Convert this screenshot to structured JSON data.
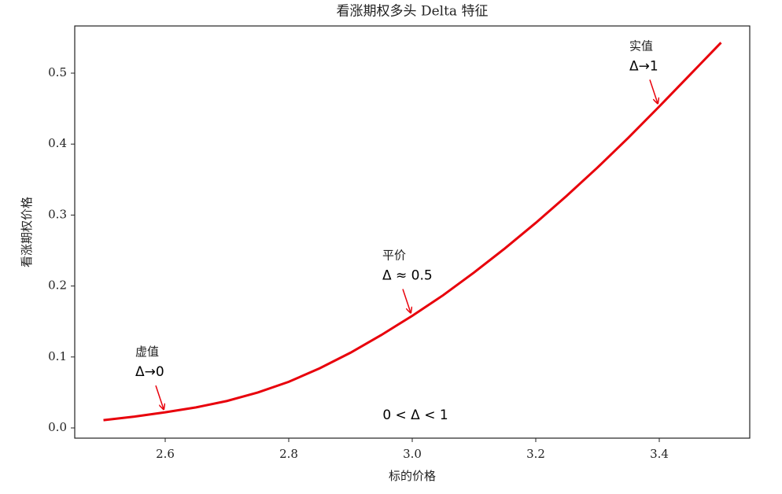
{
  "chart_data": {
    "type": "line",
    "title": "看涨期权多头 Delta 特征",
    "x_label": "标的价格",
    "y_label": "看涨期权价格",
    "x": [
      2.5,
      2.55,
      2.6,
      2.65,
      2.7,
      2.75,
      2.8,
      2.85,
      2.9,
      2.95,
      3.0,
      3.05,
      3.1,
      3.15,
      3.2,
      3.25,
      3.3,
      3.35,
      3.4,
      3.45,
      3.5
    ],
    "series": [
      {
        "color": "#e8000b",
        "values": [
          0.011,
          0.016,
          0.022,
          0.029,
          0.038,
          0.05,
          0.065,
          0.084,
          0.106,
          0.131,
          0.158,
          0.187,
          0.219,
          0.253,
          0.289,
          0.327,
          0.367,
          0.409,
          0.453,
          0.498,
          0.543
        ]
      }
    ],
    "xlim": [
      2.4535,
      3.5465
    ],
    "ylim": [
      -0.0144,
      0.5665
    ],
    "xticks": [
      2.6,
      2.8,
      {
        "value": 3.0,
        "label": "3.0"
      },
      3.2,
      3.4
    ],
    "yticks": [
      {
        "value": 0,
        "label": "0.0"
      },
      0.1,
      0.2,
      0.3,
      0.4,
      0.5
    ],
    "annotations": [
      {
        "label": "虚值",
        "delta": "Δ→0",
        "x": 2.6,
        "y": 0.022
      },
      {
        "label": "平价",
        "delta": "Δ ≈ 0.5",
        "x": 3.0,
        "y": 0.158
      },
      {
        "label": "实值",
        "delta": "Δ→1",
        "x": 3.4,
        "y": 0.453
      }
    ],
    "note": "0 < Δ < 1",
    "arrow_color": "#e8000b"
  }
}
